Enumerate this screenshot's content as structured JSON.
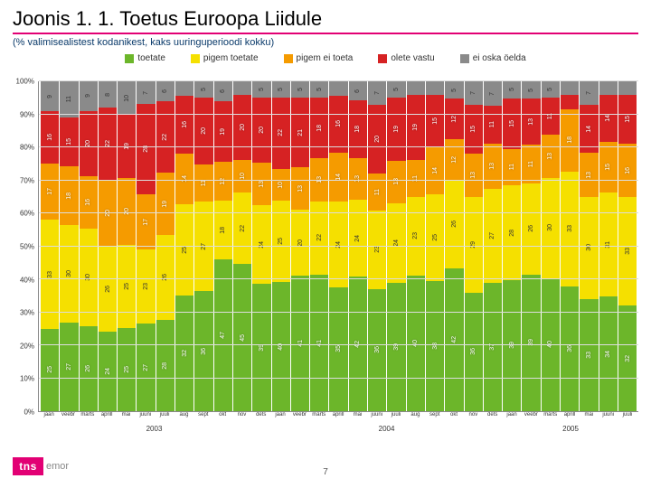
{
  "title": "Joonis 1. 1. Toetus Euroopa Liidule",
  "subtitle": "(% valimisealistest kodanikest, kaks uuringuperioodi kokku)",
  "page_number": "7",
  "logo": {
    "brand": "tns",
    "suffix": "emor"
  },
  "chart": {
    "type": "stacked-bar-100",
    "ylim": [
      0,
      100
    ],
    "ytick_step": 10,
    "y_ticks": [
      "0%",
      "10%",
      "20%",
      "30%",
      "40%",
      "50%",
      "60%",
      "70%",
      "80%",
      "90%",
      "100%"
    ],
    "background_color": "#ffffff",
    "grid_color": "#dddddd",
    "axis_color": "#888888",
    "label_fontsize": 7,
    "legend_fontsize": 10,
    "legend": [
      {
        "label": "toetate",
        "color": "#6cb62a"
      },
      {
        "label": "pigem toetate",
        "color": "#f5e000"
      },
      {
        "label": "pigem ei toeta",
        "color": "#f59b00"
      },
      {
        "label": "olete vastu",
        "color": "#d62223"
      },
      {
        "label": "ei oska öelda",
        "color": "#8a8a8a"
      }
    ],
    "year_spans": [
      {
        "label": "2003",
        "cols": 12
      },
      {
        "label": "2004",
        "cols": 12
      },
      {
        "label": "2005",
        "cols": 7
      }
    ],
    "x_labels": [
      "jaan",
      "veebr",
      "märts",
      "aprill",
      "mai",
      "juuni",
      "juuli",
      "aug",
      "sept",
      "okt",
      "nov",
      "dets",
      "jaan",
      "veebr",
      "märts",
      "aprill",
      "mai",
      "juuni",
      "juuli",
      "aug",
      "sept",
      "okt",
      "nov",
      "dets",
      "jaan",
      "veebr",
      "märts",
      "aprill",
      "mai",
      "juuni",
      "juuli"
    ],
    "bars": [
      {
        "v": [
          25,
          33,
          17,
          16,
          9
        ]
      },
      {
        "v": [
          27,
          30,
          18,
          15,
          11
        ]
      },
      {
        "v": [
          26,
          30,
          16,
          20,
          9
        ]
      },
      {
        "v": [
          24,
          26,
          20,
          22,
          8
        ]
      },
      {
        "v": [
          25,
          25,
          20,
          19,
          10
        ]
      },
      {
        "v": [
          27,
          23,
          17,
          28,
          7
        ]
      },
      {
        "v": [
          28,
          26,
          19,
          22,
          6
        ]
      },
      {
        "v": [
          32,
          25,
          14,
          16,
          4
        ]
      },
      {
        "v": [
          36,
          27,
          11,
          20,
          5
        ]
      },
      {
        "v": [
          47,
          18,
          12,
          19,
          6
        ]
      },
      {
        "v": [
          45,
          22,
          10,
          20,
          4
        ]
      },
      {
        "v": [
          39,
          24,
          13,
          20,
          5
        ]
      },
      {
        "v": [
          40,
          25,
          10,
          22,
          5
        ]
      },
      {
        "v": [
          41,
          20,
          13,
          21,
          5
        ]
      },
      {
        "v": [
          41,
          22,
          13,
          18,
          5
        ]
      },
      {
        "v": [
          35,
          24,
          14,
          16,
          4
        ]
      },
      {
        "v": [
          42,
          24,
          13,
          18,
          6
        ]
      },
      {
        "v": [
          36,
          23,
          11,
          20,
          7
        ]
      },
      {
        "v": [
          39,
          24,
          13,
          19,
          5
        ]
      },
      {
        "v": [
          40,
          23,
          11,
          19,
          4
        ]
      },
      {
        "v": [
          38,
          25,
          14,
          15,
          4
        ]
      },
      {
        "v": [
          42,
          26,
          12,
          12,
          5
        ]
      },
      {
        "v": [
          36,
          29,
          13,
          15,
          7
        ]
      },
      {
        "v": [
          37,
          27,
          13,
          11,
          7
        ]
      },
      {
        "v": [
          39,
          28,
          11,
          15,
          5
        ]
      },
      {
        "v": [
          39,
          26,
          11,
          13,
          5
        ]
      },
      {
        "v": [
          40,
          30,
          13,
          11,
          5
        ]
      },
      {
        "v": [
          36,
          33,
          18,
          4,
          4
        ]
      },
      {
        "v": [
          33,
          30,
          13,
          14,
          7
        ]
      },
      {
        "v": [
          34,
          31,
          15,
          14,
          4
        ]
      },
      {
        "v": [
          32,
          33,
          16,
          15,
          4
        ]
      }
    ]
  }
}
